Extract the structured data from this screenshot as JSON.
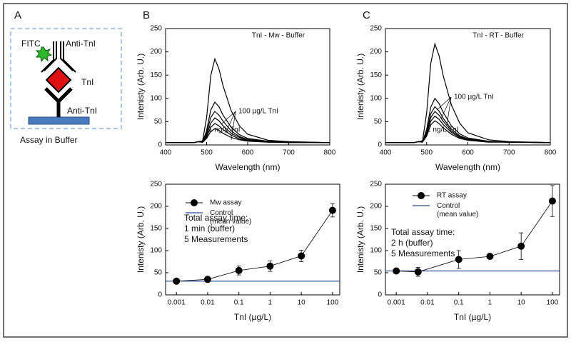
{
  "diagram": {
    "label": "A",
    "fitc": "FITC",
    "top_antibody": "Anti-TnI",
    "antigen": "TnI",
    "bottom_antibody": "Anti-TnI",
    "caption": "Assay in Buffer"
  },
  "chart_data": [
    {
      "type": "line",
      "label": "B",
      "title": "TnI - Mw - Buffer",
      "xlabel": "Wavelength (nm)",
      "ylabel": "Intenisty (Arb. U.)",
      "x": [
        400,
        450,
        470,
        480,
        490,
        500,
        510,
        520,
        530,
        540,
        560,
        580,
        600,
        650,
        700,
        800
      ],
      "xlim": [
        400,
        800
      ],
      "xticks": [
        400,
        500,
        600,
        700,
        800
      ],
      "ylim": [
        0,
        250
      ],
      "yticks": [
        0,
        50,
        100,
        150,
        200,
        250
      ],
      "annotations": [
        "100 µg/L TnI",
        "1 ng/L TnI"
      ],
      "series": [
        {
          "color": "#000000",
          "values": [
            5,
            5,
            5,
            7,
            8.6,
            59,
            149,
            185,
            163,
            127,
            73,
            41,
            23,
            10,
            7,
            5
          ]
        },
        {
          "color": "#000000",
          "values": [
            5,
            5,
            5,
            7,
            6.7,
            31,
            75,
            92,
            82,
            64,
            38,
            22,
            14,
            8,
            6,
            5
          ]
        },
        {
          "color": "#000000",
          "values": [
            5,
            5,
            5,
            7,
            6.3,
            25,
            59,
            72,
            64,
            51,
            30,
            18,
            12,
            7,
            6,
            5
          ]
        },
        {
          "color": "#000000",
          "values": [
            5,
            5,
            5,
            7,
            6,
            21,
            47,
            58,
            52,
            41,
            25,
            16,
            10,
            7,
            6,
            5
          ]
        },
        {
          "color": "#000000",
          "values": [
            5,
            5,
            5,
            7,
            5.8,
            17,
            38,
            46,
            41,
            33,
            21,
            13,
            9,
            6,
            5,
            5
          ]
        },
        {
          "color": "#000000",
          "values": [
            5,
            5,
            5,
            7,
            5.6,
            14,
            29,
            35,
            31,
            25,
            16,
            11,
            8,
            6,
            5,
            5
          ]
        }
      ]
    },
    {
      "type": "line",
      "label": "C",
      "title": "TnI - RT - Buffer",
      "xlabel": "Wavelength (nm)",
      "ylabel": "Intenisty (Arb. U.)",
      "x": [
        400,
        450,
        470,
        480,
        490,
        500,
        510,
        520,
        530,
        540,
        560,
        580,
        600,
        650,
        700,
        800
      ],
      "xlim": [
        400,
        800
      ],
      "xticks": [
        400,
        500,
        600,
        700,
        800
      ],
      "ylim": [
        0,
        250
      ],
      "yticks": [
        0,
        50,
        100,
        150,
        200,
        250
      ],
      "annotations": [
        "100 µg/L TnI",
        "1 ng/L TnI"
      ],
      "series": [
        {
          "color": "#000000",
          "values": [
            5,
            5,
            5,
            7,
            9,
            69,
            175,
            217,
            192,
            149,
            86,
            47,
            26,
            11,
            7,
            5
          ]
        },
        {
          "color": "#000000",
          "values": [
            5,
            5,
            5,
            7,
            7,
            34,
            81,
            100,
            89,
            70,
            41,
            24,
            15,
            8,
            6,
            5
          ]
        },
        {
          "color": "#000000",
          "values": [
            5,
            5,
            5,
            7,
            6.5,
            28,
            67,
            82,
            73,
            57,
            34,
            20,
            13,
            7,
            6,
            5
          ]
        },
        {
          "color": "#000000",
          "values": [
            5,
            5,
            5,
            7,
            6.3,
            25,
            59,
            72,
            64,
            51,
            30,
            18,
            12,
            7,
            6,
            5
          ]
        },
        {
          "color": "#000000",
          "values": [
            5,
            5,
            5,
            7,
            6,
            22,
            51,
            62,
            55,
            44,
            27,
            16,
            11,
            7,
            6,
            5
          ]
        },
        {
          "color": "#000000",
          "values": [
            5,
            5,
            5,
            7,
            6,
            19,
            43,
            52,
            46,
            37,
            23,
            14,
            10,
            6,
            6,
            5
          ]
        }
      ]
    },
    {
      "type": "errorbar",
      "xlabel": "TnI (µg/L)",
      "ylabel": "Intenisty (Arb. U.)",
      "xscale": "log",
      "x": [
        0.001,
        0.01,
        0.1,
        1,
        10,
        100
      ],
      "xlim": [
        0.00045,
        170
      ],
      "xticks": [
        0.001,
        0.01,
        0.1,
        1,
        10,
        100
      ],
      "ylim": [
        0,
        250
      ],
      "yticks": [
        0,
        50,
        100,
        150,
        200,
        250
      ],
      "legend": "upper left",
      "annotation": [
        "Total assay time:",
        "1 min (buffer)",
        "5 Measurements"
      ],
      "series": [
        {
          "name": "Mw assay",
          "color": "#000000",
          "values": [
            31,
            35,
            55,
            65,
            88,
            191
          ],
          "errors": [
            3,
            3,
            10,
            12,
            13,
            15
          ]
        }
      ],
      "reference_lines": [
        {
          "name": "Control (mean value)",
          "color": "#2e4a9a",
          "value": 31
        }
      ]
    },
    {
      "type": "errorbar",
      "xlabel": "TnI (µg/L)",
      "ylabel": "Intenisty (Arb. U.)",
      "xscale": "log",
      "x": [
        0.001,
        0.005,
        0.1,
        1,
        10,
        100
      ],
      "xlim": [
        0.00045,
        170
      ],
      "xticks": [
        0.001,
        0.01,
        0.1,
        1,
        10,
        100
      ],
      "ylim": [
        0,
        250
      ],
      "yticks": [
        0,
        50,
        100,
        150,
        200,
        250
      ],
      "legend": "upper left",
      "annotation": [
        "Total assay time:",
        "2 h (buffer)",
        "5 Measurements"
      ],
      "series": [
        {
          "name": "RT assay",
          "color": "#000000",
          "values": [
            54,
            52,
            80,
            87,
            110,
            212
          ],
          "errors": [
            3,
            10,
            20,
            3,
            30,
            35
          ]
        }
      ],
      "reference_lines": [
        {
          "name": "Control (mean value)",
          "color": "#2e4a9a",
          "value": 54
        }
      ]
    }
  ]
}
